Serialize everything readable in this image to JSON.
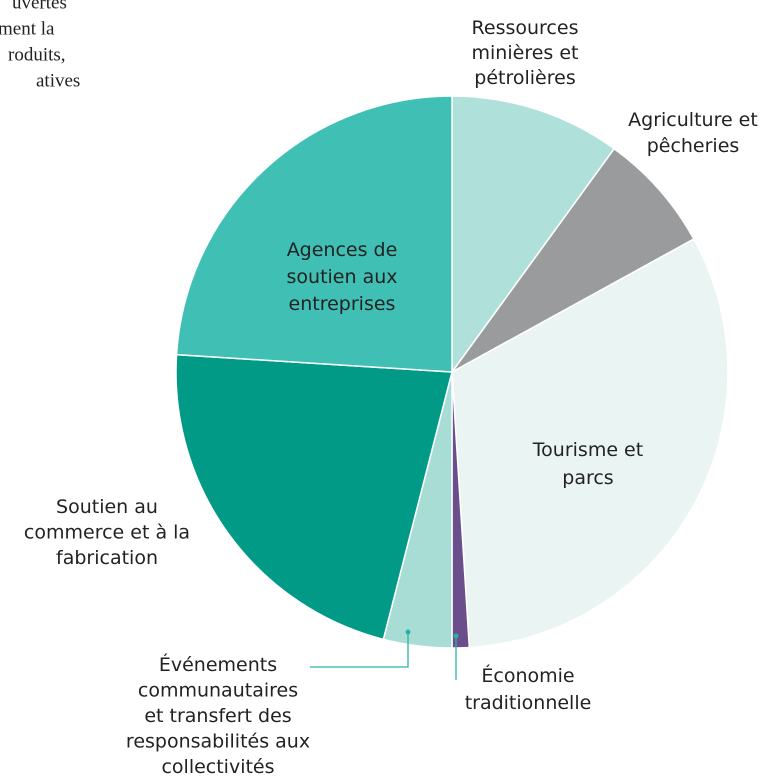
{
  "note_lines": [
    "uvertes",
    "ment la",
    "roduits,",
    "atives"
  ],
  "chart_data": {
    "type": "pie",
    "categories": [
      "Ressources\nminières et\npétrolières",
      "Agriculture et\npêcheries",
      "Tourisme et\nparcs",
      "Économie\ntraditionnelle",
      "Événements\ncommunautaires\net transfert des\nresponsabilités aux\ncollectivités",
      "Soutien au\ncommerce et à la\nfabrication",
      "Agences de\nsoutien aux\nentreprises"
    ],
    "values": [
      10,
      7,
      32,
      1,
      4,
      22,
      24
    ],
    "colors": [
      "#b0e0da",
      "#9a9b9d",
      "#eaf5f3",
      "#6b4f8c",
      "#a8ddd6",
      "#009a87",
      "#40bfb4"
    ]
  }
}
